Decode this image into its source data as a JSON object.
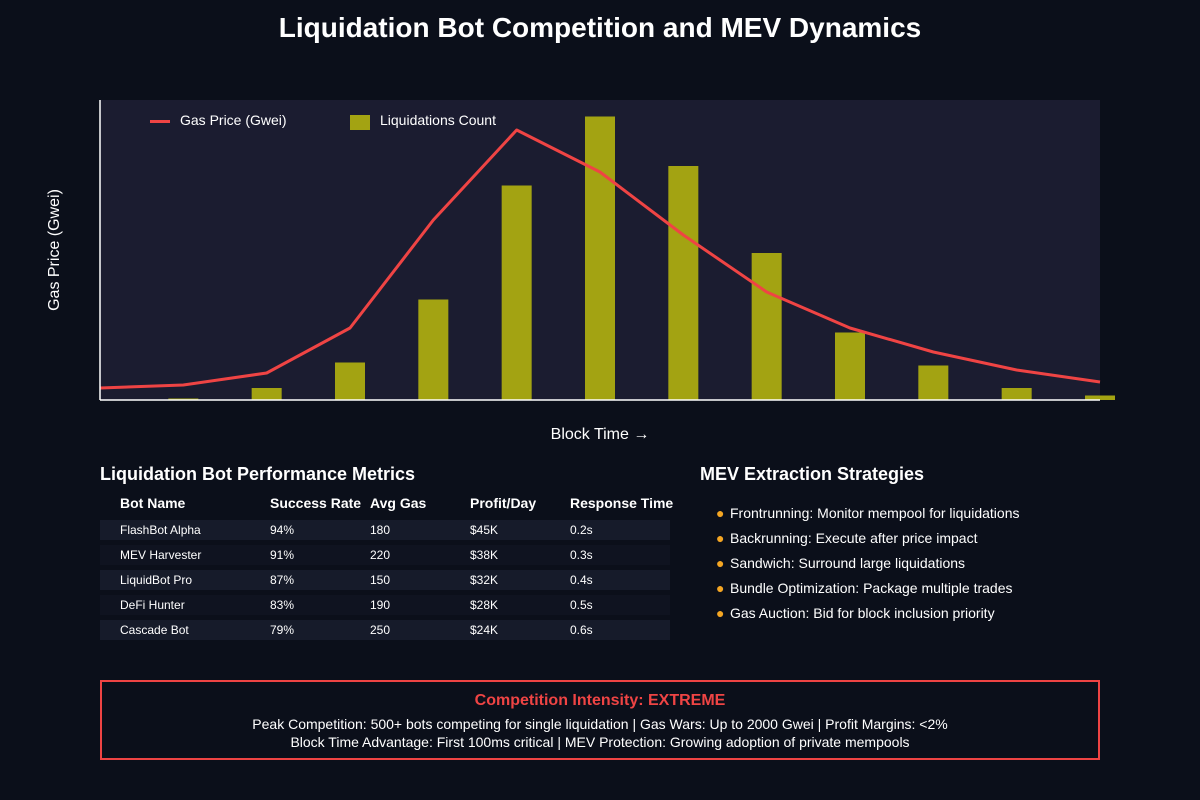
{
  "title": "Liquidation Bot Competition and MEV Dynamics",
  "chart_data": {
    "type": "bar",
    "title": "Liquidation Bot Competition and MEV Dynamics",
    "ylabel": "Gas Price (Gwei)",
    "xlabel": "Block Time →",
    "grid": false,
    "legend_placement": "top-left",
    "x": [
      0,
      1,
      2,
      3,
      4,
      5,
      6,
      7,
      8,
      9,
      10,
      11,
      12
    ],
    "xlim": [
      0,
      12
    ],
    "ylim": [
      0,
      100
    ],
    "series": [
      {
        "name": "Gas Price (Gwei)",
        "type": "line",
        "color": "#ef4444",
        "values": [
          4,
          5,
          9,
          24,
          60,
          90,
          76,
          55,
          36,
          24,
          16,
          10,
          6
        ]
      },
      {
        "name": "Liquidations Count",
        "type": "bar",
        "color": "#a3a312",
        "values": [
          0,
          0.5,
          4,
          12.5,
          33.5,
          71.5,
          94.5,
          78,
          49,
          22.5,
          11.5,
          4,
          1.5
        ]
      }
    ]
  },
  "legend": {
    "gas": "Gas Price (Gwei)",
    "liq": "Liquidations Count"
  },
  "metrics": {
    "title": "Liquidation Bot Performance Metrics",
    "headers": [
      "Bot Name",
      "Success Rate",
      "Avg Gas",
      "Profit/Day",
      "Response Time"
    ],
    "rows": [
      [
        "FlashBot Alpha",
        "94%",
        "180",
        "$45K",
        "0.2s"
      ],
      [
        "MEV Harvester",
        "91%",
        "220",
        "$38K",
        "0.3s"
      ],
      [
        "LiquidBot Pro",
        "87%",
        "150",
        "$32K",
        "0.4s"
      ],
      [
        "DeFi Hunter",
        "83%",
        "190",
        "$28K",
        "0.5s"
      ],
      [
        "Cascade Bot",
        "79%",
        "250",
        "$24K",
        "0.6s"
      ]
    ]
  },
  "strategies": {
    "title": "MEV Extraction Strategies",
    "items": [
      "Frontrunning: Monitor mempool for liquidations",
      "Backrunning: Execute after price impact",
      "Sandwich: Surround large liquidations",
      "Bundle Optimization: Package multiple trades",
      "Gas Auction: Bid for block inclusion priority"
    ]
  },
  "intensity": {
    "title": "Competition Intensity: EXTREME",
    "line1": "Peak Competition: 500+ bots competing for single liquidation | Gas Wars: Up to 2000 Gwei | Profit Margins: <2%",
    "line2": "Block Time Advantage: First 100ms critical | MEV Protection: Growing adoption of private mempools"
  }
}
